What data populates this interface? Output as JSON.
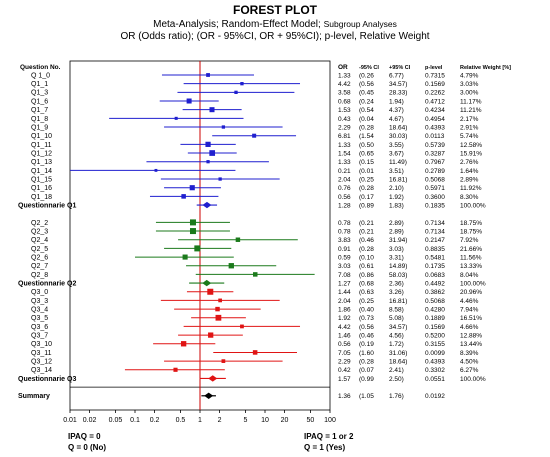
{
  "header": {
    "title": "FOREST PLOT",
    "line2_main": "Meta-Analysis; Random-Effect Model; ",
    "line2_small": "Subgroup Analyses",
    "line3": "OR (Odds ratio);  (OR - 95%CI, OR + 95%CI); p-level, Relative Weight"
  },
  "column_headers": {
    "question": "Question No.",
    "or": "OR",
    "ci_low": "-95% CI",
    "ci_high": "+95% CI",
    "p": "p-level",
    "weight": "Relative Weight [%]"
  },
  "footer": {
    "left_line1": "IPAQ = 0",
    "left_line2": "Q = 0 (No)",
    "right_line1": "IPAQ = 1 or 2",
    "right_line2": "Q = 1 (Yes)"
  },
  "colors": {
    "group1": "#1f1fcf",
    "group2": "#1b7a1b",
    "group3": "#e01414",
    "summary": "#000000",
    "ref_line": "#cc0000"
  },
  "chart_data": {
    "type": "forest",
    "x_scale": "log",
    "xlim": [
      0.01,
      100
    ],
    "x_ticks": [
      "0.01",
      "0.02",
      "0.05",
      "0.1",
      "0.2",
      "0.5",
      "1",
      "2",
      "5",
      "10",
      "20",
      "50",
      "100"
    ],
    "x_tick_values": [
      0.01,
      0.02,
      0.05,
      0.1,
      0.2,
      0.5,
      1,
      2,
      5,
      10,
      20,
      50,
      100
    ],
    "reference_line": 1,
    "rows": [
      {
        "label": "Q 1_0",
        "or": "1.33",
        "lo": "(0.26",
        "hi": "6.77)",
        "p": "0.7315",
        "w": "4.79%",
        "group": 1
      },
      {
        "label": "Q1_1",
        "or": "4.42",
        "lo": "(0.56",
        "hi": "34.57)",
        "p": "0.1569",
        "w": "3.03%",
        "group": 1
      },
      {
        "label": "Q1_3",
        "or": "3.58",
        "lo": "(0.45",
        "hi": "28.33)",
        "p": "0.2262",
        "w": "3.00%",
        "group": 1
      },
      {
        "label": "Q1_6",
        "or": "0.68",
        "lo": "(0.24",
        "hi": "1.94)",
        "p": "0.4712",
        "w": "11.17%",
        "group": 1
      },
      {
        "label": "Q1_7",
        "or": "1.53",
        "lo": "(0.54",
        "hi": "4.37)",
        "p": "0.4234",
        "w": "11.21%",
        "group": 1
      },
      {
        "label": "Q1_8",
        "or": "0.43",
        "lo": "(0.04",
        "hi": "4.67)",
        "p": "0.4954",
        "w": "2.17%",
        "group": 1
      },
      {
        "label": "Q1_9",
        "or": "2.29",
        "lo": "(0.28",
        "hi": "18.64)",
        "p": "0.4393",
        "w": "2.91%",
        "group": 1
      },
      {
        "label": "Q1_10",
        "or": "6.81",
        "lo": "(1.54",
        "hi": "30.03)",
        "p": "0.0113",
        "w": "5.74%",
        "group": 1
      },
      {
        "label": "Q1_11",
        "or": "1.33",
        "lo": "(0.50",
        "hi": "3.55)",
        "p": "0.5739",
        "w": "12.58%",
        "group": 1
      },
      {
        "label": "Q1_12",
        "or": "1.54",
        "lo": "(0.65",
        "hi": "3.67)",
        "p": "0.3287",
        "w": "15.91%",
        "group": 1
      },
      {
        "label": "Q1_13",
        "or": "1.33",
        "lo": "(0.15",
        "hi": "11.49)",
        "p": "0.7967",
        "w": "2.76%",
        "group": 1
      },
      {
        "label": "Q1_14",
        "or": "0.21",
        "lo": "(0.01",
        "hi": "3.51)",
        "p": "0.2789",
        "w": "1.64%",
        "group": 1
      },
      {
        "label": "Q1_15",
        "or": "2.04",
        "lo": "(0.25",
        "hi": "16.81)",
        "p": "0.5068",
        "w": "2.89%",
        "group": 1
      },
      {
        "label": "Q1_16",
        "or": "0.76",
        "lo": "(0.28",
        "hi": "2.10)",
        "p": "0.5971",
        "w": "11.92%",
        "group": 1
      },
      {
        "label": "Q1_18",
        "or": "0.56",
        "lo": "(0.17",
        "hi": "1.92)",
        "p": "0.3600",
        "w": "8.30%",
        "group": 1
      },
      {
        "label": "Questionnarie Q1",
        "or": "1.28",
        "lo": "(0.89",
        "hi": "1.83)",
        "p": "0.1835",
        "w": "100.00%",
        "group": 1,
        "pooled": true
      },
      {
        "label": "",
        "blank": true
      },
      {
        "label": "Q2_2",
        "or": "0.78",
        "lo": "(0.21",
        "hi": "2.89)",
        "p": "0.7134",
        "w": "18.75%",
        "group": 2
      },
      {
        "label": "Q2_3",
        "or": "0.78",
        "lo": "(0.21",
        "hi": "2.89)",
        "p": "0.7134",
        "w": "18.75%",
        "group": 2
      },
      {
        "label": "Q2_4",
        "or": "3.83",
        "lo": "(0.46",
        "hi": "31.94)",
        "p": "0.2147",
        "w": "7.92%",
        "group": 2
      },
      {
        "label": "Q2_5",
        "or": "0.91",
        "lo": "(0.28",
        "hi": "3.03)",
        "p": "0.8835",
        "w": "21.66%",
        "group": 2
      },
      {
        "label": "Q2_6",
        "or": "0.59",
        "lo": "(0.10",
        "hi": "3.31)",
        "p": "0.5481",
        "w": "11.56%",
        "group": 2
      },
      {
        "label": "Q2_7",
        "or": "3.03",
        "lo": "(0.61",
        "hi": "14.89)",
        "p": "0.1735",
        "w": "13.33%",
        "group": 2
      },
      {
        "label": "Q2_8",
        "or": "7.08",
        "lo": "(0.86",
        "hi": "58.03)",
        "p": "0.0683",
        "w": "8.04%",
        "group": 2
      },
      {
        "label": "Questionnarie Q2",
        "or": "1.27",
        "lo": "(0.68",
        "hi": "2.36)",
        "p": "0.4492",
        "w": "100.00%",
        "group": 2,
        "pooled": true
      },
      {
        "label": "Q3_0",
        "or": "1.44",
        "lo": "(0.63",
        "hi": "3.26)",
        "p": "0.3862",
        "w": "20.96%",
        "group": 3
      },
      {
        "label": "Q3_3",
        "or": "2.04",
        "lo": "(0.25",
        "hi": "16.81)",
        "p": "0.5068",
        "w": "4.46%",
        "group": 3
      },
      {
        "label": "Q3_4",
        "or": "1.86",
        "lo": "(0.40",
        "hi": "8.58)",
        "p": "0.4280",
        "w": "7.94%",
        "group": 3
      },
      {
        "label": "Q3_5",
        "or": "1.92",
        "lo": "(0.73",
        "hi": "5.08)",
        "p": "0.1889",
        "w": "16.51%",
        "group": 3
      },
      {
        "label": "Q3_6",
        "or": "4.42",
        "lo": "(0.56",
        "hi": "34.57)",
        "p": "0.1569",
        "w": "4.66%",
        "group": 3
      },
      {
        "label": "Q3_7",
        "or": "1.46",
        "lo": "(0.46",
        "hi": "4.56)",
        "p": "0.5200",
        "w": "12.88%",
        "group": 3
      },
      {
        "label": "Q3_10",
        "or": "0.56",
        "lo": "(0.19",
        "hi": "1.72)",
        "p": "0.3155",
        "w": "13.44%",
        "group": 3
      },
      {
        "label": "Q3_11",
        "or": "7.05",
        "lo": "(1.60",
        "hi": "31.06)",
        "p": "0.0099",
        "w": "8.39%",
        "group": 3
      },
      {
        "label": "Q3_12",
        "or": "2.29",
        "lo": "(0.28",
        "hi": "18.64)",
        "p": "0.4393",
        "w": "4.50%",
        "group": 3
      },
      {
        "label": "Q3_14",
        "or": "0.42",
        "lo": "(0.07",
        "hi": "2.41)",
        "p": "0.3302",
        "w": "6.27%",
        "group": 3
      },
      {
        "label": "Questionnarie Q3",
        "or": "1.57",
        "lo": "(0.99",
        "hi": "2.50)",
        "p": "0.0551",
        "w": "100.00%",
        "group": 3,
        "pooled": true
      },
      {
        "label": "",
        "blank": true
      },
      {
        "label": "Summary",
        "or": "1.36",
        "lo": "(1.05",
        "hi": "1.76)",
        "p": "0.0192",
        "w": "",
        "group": 0,
        "summary": true
      }
    ]
  }
}
